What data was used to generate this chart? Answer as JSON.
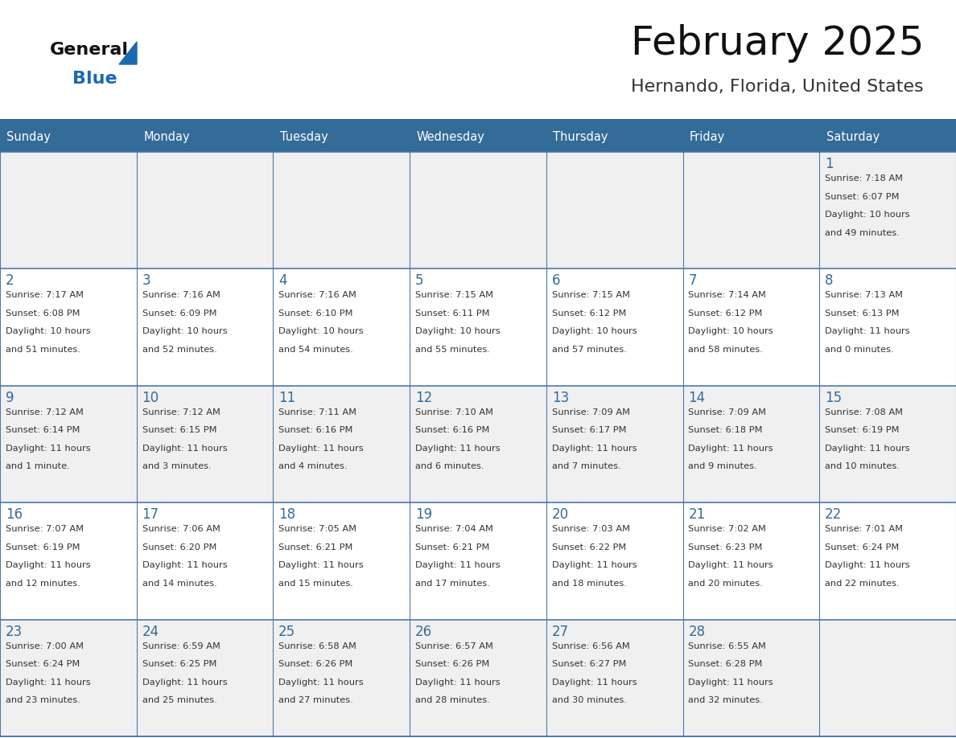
{
  "title": "February 2025",
  "subtitle": "Hernando, Florida, United States",
  "header_bg": "#336B99",
  "header_text_color": "#ffffff",
  "day_names": [
    "Sunday",
    "Monday",
    "Tuesday",
    "Wednesday",
    "Thursday",
    "Friday",
    "Saturday"
  ],
  "row0_bg": "#f0f0f0",
  "row1_bg": "#ffffff",
  "row2_bg": "#f0f0f0",
  "row3_bg": "#ffffff",
  "row4_bg": "#f0f0f0",
  "cell_border_color": "#4a7aac",
  "day_number_color": "#336B99",
  "info_text_color": "#333333",
  "title_color": "#111111",
  "subtitle_color": "#333333",
  "logo_general_color": "#111111",
  "logo_blue_color": "#1a6ab0",
  "fig_width": 11.88,
  "fig_height": 9.18,
  "dpi": 100,
  "days": [
    {
      "date": 1,
      "col": 6,
      "row": 0,
      "sunrise": "7:18 AM",
      "sunset": "6:07 PM",
      "daylight_line1": "Daylight: 10 hours",
      "daylight_line2": "and 49 minutes."
    },
    {
      "date": 2,
      "col": 0,
      "row": 1,
      "sunrise": "7:17 AM",
      "sunset": "6:08 PM",
      "daylight_line1": "Daylight: 10 hours",
      "daylight_line2": "and 51 minutes."
    },
    {
      "date": 3,
      "col": 1,
      "row": 1,
      "sunrise": "7:16 AM",
      "sunset": "6:09 PM",
      "daylight_line1": "Daylight: 10 hours",
      "daylight_line2": "and 52 minutes."
    },
    {
      "date": 4,
      "col": 2,
      "row": 1,
      "sunrise": "7:16 AM",
      "sunset": "6:10 PM",
      "daylight_line1": "Daylight: 10 hours",
      "daylight_line2": "and 54 minutes."
    },
    {
      "date": 5,
      "col": 3,
      "row": 1,
      "sunrise": "7:15 AM",
      "sunset": "6:11 PM",
      "daylight_line1": "Daylight: 10 hours",
      "daylight_line2": "and 55 minutes."
    },
    {
      "date": 6,
      "col": 4,
      "row": 1,
      "sunrise": "7:15 AM",
      "sunset": "6:12 PM",
      "daylight_line1": "Daylight: 10 hours",
      "daylight_line2": "and 57 minutes."
    },
    {
      "date": 7,
      "col": 5,
      "row": 1,
      "sunrise": "7:14 AM",
      "sunset": "6:12 PM",
      "daylight_line1": "Daylight: 10 hours",
      "daylight_line2": "and 58 minutes."
    },
    {
      "date": 8,
      "col": 6,
      "row": 1,
      "sunrise": "7:13 AM",
      "sunset": "6:13 PM",
      "daylight_line1": "Daylight: 11 hours",
      "daylight_line2": "and 0 minutes."
    },
    {
      "date": 9,
      "col": 0,
      "row": 2,
      "sunrise": "7:12 AM",
      "sunset": "6:14 PM",
      "daylight_line1": "Daylight: 11 hours",
      "daylight_line2": "and 1 minute."
    },
    {
      "date": 10,
      "col": 1,
      "row": 2,
      "sunrise": "7:12 AM",
      "sunset": "6:15 PM",
      "daylight_line1": "Daylight: 11 hours",
      "daylight_line2": "and 3 minutes."
    },
    {
      "date": 11,
      "col": 2,
      "row": 2,
      "sunrise": "7:11 AM",
      "sunset": "6:16 PM",
      "daylight_line1": "Daylight: 11 hours",
      "daylight_line2": "and 4 minutes."
    },
    {
      "date": 12,
      "col": 3,
      "row": 2,
      "sunrise": "7:10 AM",
      "sunset": "6:16 PM",
      "daylight_line1": "Daylight: 11 hours",
      "daylight_line2": "and 6 minutes."
    },
    {
      "date": 13,
      "col": 4,
      "row": 2,
      "sunrise": "7:09 AM",
      "sunset": "6:17 PM",
      "daylight_line1": "Daylight: 11 hours",
      "daylight_line2": "and 7 minutes."
    },
    {
      "date": 14,
      "col": 5,
      "row": 2,
      "sunrise": "7:09 AM",
      "sunset": "6:18 PM",
      "daylight_line1": "Daylight: 11 hours",
      "daylight_line2": "and 9 minutes."
    },
    {
      "date": 15,
      "col": 6,
      "row": 2,
      "sunrise": "7:08 AM",
      "sunset": "6:19 PM",
      "daylight_line1": "Daylight: 11 hours",
      "daylight_line2": "and 10 minutes."
    },
    {
      "date": 16,
      "col": 0,
      "row": 3,
      "sunrise": "7:07 AM",
      "sunset": "6:19 PM",
      "daylight_line1": "Daylight: 11 hours",
      "daylight_line2": "and 12 minutes."
    },
    {
      "date": 17,
      "col": 1,
      "row": 3,
      "sunrise": "7:06 AM",
      "sunset": "6:20 PM",
      "daylight_line1": "Daylight: 11 hours",
      "daylight_line2": "and 14 minutes."
    },
    {
      "date": 18,
      "col": 2,
      "row": 3,
      "sunrise": "7:05 AM",
      "sunset": "6:21 PM",
      "daylight_line1": "Daylight: 11 hours",
      "daylight_line2": "and 15 minutes."
    },
    {
      "date": 19,
      "col": 3,
      "row": 3,
      "sunrise": "7:04 AM",
      "sunset": "6:21 PM",
      "daylight_line1": "Daylight: 11 hours",
      "daylight_line2": "and 17 minutes."
    },
    {
      "date": 20,
      "col": 4,
      "row": 3,
      "sunrise": "7:03 AM",
      "sunset": "6:22 PM",
      "daylight_line1": "Daylight: 11 hours",
      "daylight_line2": "and 18 minutes."
    },
    {
      "date": 21,
      "col": 5,
      "row": 3,
      "sunrise": "7:02 AM",
      "sunset": "6:23 PM",
      "daylight_line1": "Daylight: 11 hours",
      "daylight_line2": "and 20 minutes."
    },
    {
      "date": 22,
      "col": 6,
      "row": 3,
      "sunrise": "7:01 AM",
      "sunset": "6:24 PM",
      "daylight_line1": "Daylight: 11 hours",
      "daylight_line2": "and 22 minutes."
    },
    {
      "date": 23,
      "col": 0,
      "row": 4,
      "sunrise": "7:00 AM",
      "sunset": "6:24 PM",
      "daylight_line1": "Daylight: 11 hours",
      "daylight_line2": "and 23 minutes."
    },
    {
      "date": 24,
      "col": 1,
      "row": 4,
      "sunrise": "6:59 AM",
      "sunset": "6:25 PM",
      "daylight_line1": "Daylight: 11 hours",
      "daylight_line2": "and 25 minutes."
    },
    {
      "date": 25,
      "col": 2,
      "row": 4,
      "sunrise": "6:58 AM",
      "sunset": "6:26 PM",
      "daylight_line1": "Daylight: 11 hours",
      "daylight_line2": "and 27 minutes."
    },
    {
      "date": 26,
      "col": 3,
      "row": 4,
      "sunrise": "6:57 AM",
      "sunset": "6:26 PM",
      "daylight_line1": "Daylight: 11 hours",
      "daylight_line2": "and 28 minutes."
    },
    {
      "date": 27,
      "col": 4,
      "row": 4,
      "sunrise": "6:56 AM",
      "sunset": "6:27 PM",
      "daylight_line1": "Daylight: 11 hours",
      "daylight_line2": "and 30 minutes."
    },
    {
      "date": 28,
      "col": 5,
      "row": 4,
      "sunrise": "6:55 AM",
      "sunset": "6:28 PM",
      "daylight_line1": "Daylight: 11 hours",
      "daylight_line2": "and 32 minutes."
    }
  ]
}
